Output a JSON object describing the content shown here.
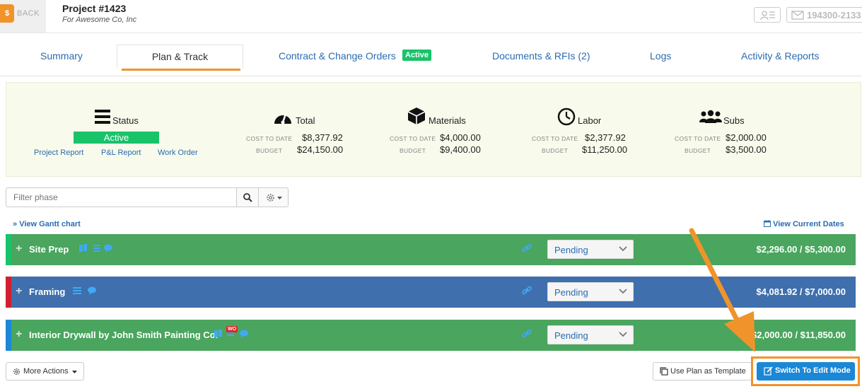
{
  "header": {
    "back_label": "BACK",
    "back_icon_glyph": "$",
    "project_title": "Project #1423",
    "project_subtitle": "For Awesome Co, Inc",
    "mail_number": "194300-2133"
  },
  "tabs": {
    "summary": "Summary",
    "plan_track": "Plan & Track",
    "contracts": "Contract & Change Orders",
    "contracts_badge": "Active",
    "documents": "Documents & RFIs (2)",
    "logs": "Logs",
    "activity": "Activity & Reports"
  },
  "summary": {
    "status": {
      "label": "Status",
      "value": "Active",
      "links": [
        "Project Report",
        "P&L Report",
        "Work Order"
      ]
    },
    "total": {
      "label": "Total",
      "cost_label": "COST TO DATE",
      "cost": "$8,377.92",
      "budget_label": "BUDGET",
      "budget": "$24,150.00"
    },
    "materials": {
      "label": "Materials",
      "cost_label": "COST TO DATE",
      "cost": "$4,000.00",
      "budget_label": "BUDGET",
      "budget": "$9,400.00"
    },
    "labor": {
      "label": "Labor",
      "cost_label": "COST TO DATE",
      "cost": "$2,377.92",
      "budget_label": "BUDGET",
      "budget": "$11,250.00"
    },
    "subs": {
      "label": "Subs",
      "cost_label": "COST TO DATE",
      "cost": "$2,000.00",
      "budget_label": "BUDGET",
      "budget": "$3,500.00"
    }
  },
  "filter": {
    "placeholder": "Filter phase"
  },
  "links": {
    "gantt": "View Gantt chart",
    "dates": "View Current Dates"
  },
  "phases": [
    {
      "name": "Site Prep",
      "status": "Pending",
      "amount": "$2,296.00 / $5,300.00",
      "color": "#4aa55e",
      "stripe": "#18c36a"
    },
    {
      "name": "Framing",
      "status": "Pending",
      "amount": "$4,081.92 / $7,000.00",
      "color": "#3f6fad",
      "stripe": "#d0202f"
    },
    {
      "name": "Interior Drywall by John Smith Painting Co.",
      "status": "Pending",
      "amount": "$2,000.00 / $11,850.00",
      "color": "#4aa55e",
      "stripe": "#1a88d6",
      "badge": "WO"
    }
  ],
  "footer": {
    "more_actions": "More Actions",
    "use_template": "Use Plan as Template",
    "switch_edit": "Switch To Edit Mode"
  },
  "colors": {
    "accent": "#f0932b",
    "link": "#2b6cb0",
    "active_green": "#18c36a",
    "primary_button": "#1a88d6"
  }
}
